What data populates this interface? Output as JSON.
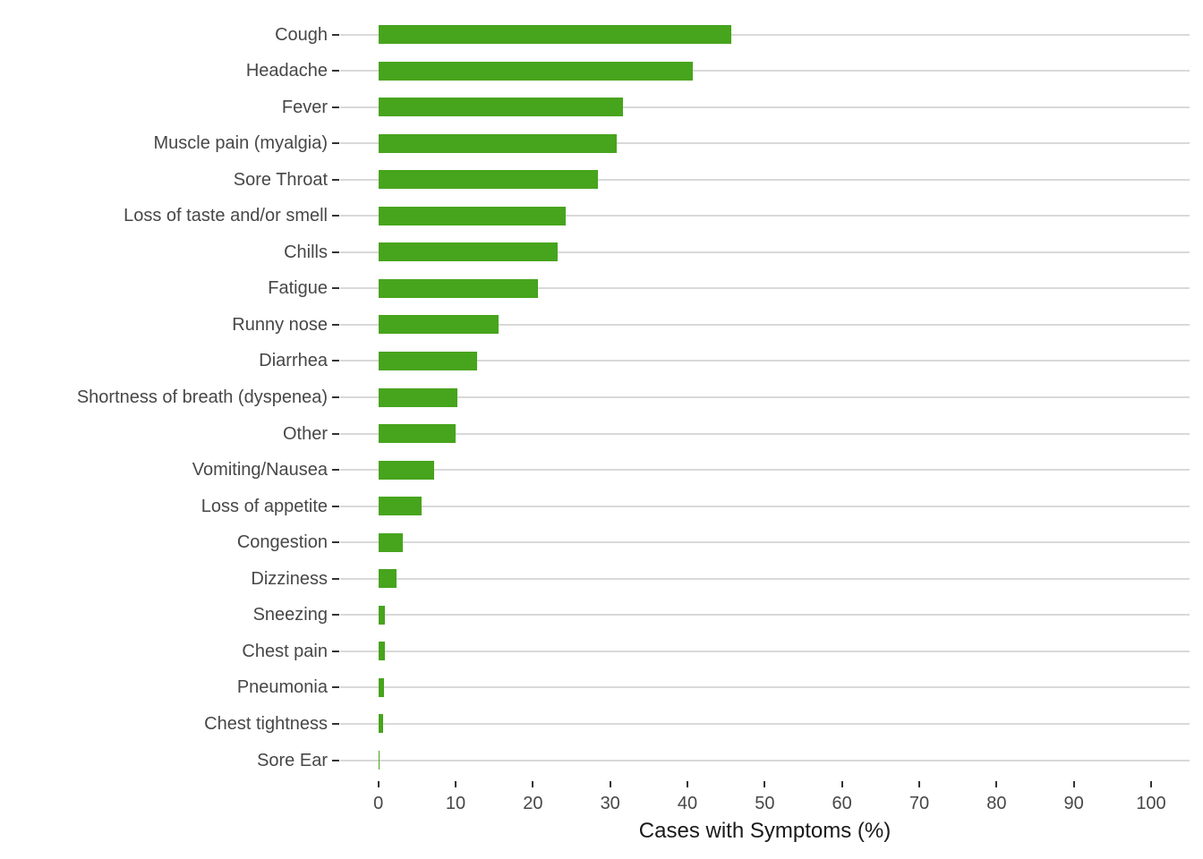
{
  "chart_data": {
    "type": "bar",
    "orientation": "horizontal",
    "title": "",
    "xlabel": "Cases with Symptoms (%)",
    "ylabel": "",
    "categories": [
      "Cough",
      "Headache",
      "Fever",
      "Muscle pain (myalgia)",
      "Sore Throat",
      "Loss of taste and/or smell",
      "Chills",
      "Fatigue",
      "Runny nose",
      "Diarrhea",
      "Shortness of breath (dyspenea)",
      "Other",
      "Vomiting/Nausea",
      "Loss of appetite",
      "Congestion",
      "Dizziness",
      "Sneezing",
      "Chest pain",
      "Pneumonia",
      "Chest tightness",
      "Sore Ear"
    ],
    "values": [
      45.7,
      40.7,
      31.7,
      30.9,
      28.4,
      24.2,
      23.2,
      20.6,
      15.6,
      12.8,
      10.2,
      10.0,
      7.2,
      5.6,
      3.2,
      2.4,
      0.9,
      0.9,
      0.7,
      0.6,
      0.15
    ],
    "xlim": [
      0,
      100
    ],
    "x_ticks": [
      0,
      10,
      20,
      30,
      40,
      50,
      60,
      70,
      80,
      90,
      100
    ],
    "grid": "horizontal-major-only",
    "legend": "none",
    "colors": {
      "bar": "#47A41D",
      "gridline": "#D9D9D9",
      "tick": "#333333",
      "axis_text": "#474747",
      "axis_title": "#1A1A1A",
      "background": "#FFFFFF"
    }
  }
}
